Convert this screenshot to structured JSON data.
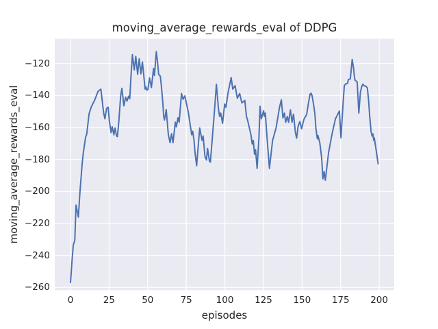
{
  "chart_data": {
    "type": "line",
    "title": "moving_average_rewards_eval of DDPG",
    "xlabel": "episodes",
    "ylabel": "moving_average_rewards_eval",
    "x_ticks": [
      0,
      25,
      50,
      75,
      100,
      125,
      150,
      175,
      200
    ],
    "x_tick_labels": [
      "0",
      "25",
      "50",
      "75",
      "100",
      "125",
      "150",
      "175",
      "200"
    ],
    "y_ticks": [
      -120,
      -140,
      -160,
      -180,
      -200,
      -220,
      -240,
      -260
    ],
    "y_tick_labels": [
      "−120",
      "−140",
      "−160",
      "−180",
      "−200",
      "−220",
      "−240",
      "−260"
    ],
    "xlim": [
      -10.2,
      209.7
    ],
    "ylim": [
      -261.7,
      -104.5
    ],
    "grid": true,
    "legend_position": "none",
    "style": {
      "figure_bg": "#ffffff",
      "axes_bg": "#eaeaf2",
      "grid_color": "#ffffff",
      "line_color": "#4c72b0",
      "text_color": "#262626"
    },
    "series": [
      {
        "name": "moving_average_rewards_eval",
        "points": [
          [
            0,
            -257
          ],
          [
            1,
            -243
          ],
          [
            1.8,
            -233.5
          ],
          [
            2.8,
            -230.5
          ],
          [
            3.6,
            -208.5
          ],
          [
            5.1,
            -216
          ],
          [
            6.1,
            -200.5
          ],
          [
            7.6,
            -182.5
          ],
          [
            8.3,
            -176
          ],
          [
            9.8,
            -166
          ],
          [
            10.5,
            -164.3
          ],
          [
            12,
            -151.5
          ],
          [
            13.5,
            -147
          ],
          [
            15.7,
            -142.8
          ],
          [
            17.8,
            -137.5
          ],
          [
            19.7,
            -136
          ],
          [
            20.8,
            -145.3
          ],
          [
            21.5,
            -151
          ],
          [
            22.3,
            -154.6
          ],
          [
            23.4,
            -148
          ],
          [
            24.4,
            -147.3
          ],
          [
            25.2,
            -156
          ],
          [
            26.3,
            -163.2
          ],
          [
            27,
            -159.5
          ],
          [
            28.1,
            -164.6
          ],
          [
            28.8,
            -160.3
          ],
          [
            29.9,
            -165.3
          ],
          [
            30.4,
            -165.7
          ],
          [
            31.4,
            -155.3
          ],
          [
            32.5,
            -140.3
          ],
          [
            33.3,
            -135.5
          ],
          [
            34.6,
            -146.5
          ],
          [
            35.7,
            -141
          ],
          [
            36.6,
            -143.5
          ],
          [
            37.6,
            -140.5
          ],
          [
            38.4,
            -142
          ],
          [
            39.2,
            -128
          ],
          [
            40.1,
            -114.5
          ],
          [
            41.3,
            -124
          ],
          [
            42.3,
            -115.5
          ],
          [
            43.5,
            -126.7
          ],
          [
            44.5,
            -117
          ],
          [
            45.6,
            -126.5
          ],
          [
            46.6,
            -119
          ],
          [
            47.5,
            -127.5
          ],
          [
            48.3,
            -136
          ],
          [
            48.8,
            -134.5
          ],
          [
            49.5,
            -136.7
          ],
          [
            50.2,
            -136.2
          ],
          [
            51.2,
            -129
          ],
          [
            52.4,
            -135
          ],
          [
            53.8,
            -123.1
          ],
          [
            54.4,
            -127.5
          ],
          [
            55.6,
            -112.5
          ],
          [
            56.4,
            -119
          ],
          [
            57.1,
            -126.7
          ],
          [
            58.2,
            -128
          ],
          [
            58.9,
            -134.6
          ],
          [
            59.8,
            -144.5
          ],
          [
            60.4,
            -153.1
          ],
          [
            60.9,
            -155.3
          ],
          [
            62,
            -148.8
          ],
          [
            63.4,
            -164.6
          ],
          [
            64.5,
            -169.5
          ],
          [
            65.5,
            -163.9
          ],
          [
            66.4,
            -169.5
          ],
          [
            67.9,
            -156.7
          ],
          [
            68.6,
            -159.6
          ],
          [
            69.6,
            -153.9
          ],
          [
            70.4,
            -156.7
          ],
          [
            71.9,
            -138.8
          ],
          [
            72.9,
            -142.4
          ],
          [
            74.1,
            -140.3
          ],
          [
            75.5,
            -146.7
          ],
          [
            76.3,
            -150.3
          ],
          [
            78.5,
            -164.6
          ],
          [
            79.2,
            -162.4
          ],
          [
            80,
            -168.1
          ],
          [
            80.7,
            -176
          ],
          [
            81.7,
            -183.9
          ],
          [
            83.7,
            -160.3
          ],
          [
            84.4,
            -163.9
          ],
          [
            85.2,
            -168.1
          ],
          [
            85.9,
            -165.3
          ],
          [
            87.1,
            -178.1
          ],
          [
            88.1,
            -180.3
          ],
          [
            88.8,
            -173.1
          ],
          [
            90,
            -181
          ],
          [
            90.6,
            -181.7
          ],
          [
            91.8,
            -167.4
          ],
          [
            93.3,
            -148.8
          ],
          [
            94.5,
            -133
          ],
          [
            95.9,
            -148.8
          ],
          [
            96.6,
            -153.1
          ],
          [
            97.3,
            -151
          ],
          [
            98.5,
            -157.4
          ],
          [
            99.9,
            -145.3
          ],
          [
            100.7,
            -147.4
          ],
          [
            102.1,
            -138.1
          ],
          [
            104.1,
            -128.8
          ],
          [
            105.1,
            -136
          ],
          [
            106.6,
            -133.8
          ],
          [
            108.1,
            -141.7
          ],
          [
            109.6,
            -138.8
          ],
          [
            111,
            -144.6
          ],
          [
            112.9,
            -143.1
          ],
          [
            114,
            -153.1
          ],
          [
            114.7,
            -155.3
          ],
          [
            116.9,
            -164.6
          ],
          [
            117.7,
            -170.3
          ],
          [
            118.4,
            -168.1
          ],
          [
            119.2,
            -176.7
          ],
          [
            119.9,
            -173.9
          ],
          [
            120.9,
            -185.6
          ],
          [
            122.1,
            -166
          ],
          [
            122.8,
            -146.7
          ],
          [
            123.6,
            -154.6
          ],
          [
            125.1,
            -149.6
          ],
          [
            125.6,
            -153.1
          ],
          [
            126.2,
            -151
          ],
          [
            127.2,
            -164.6
          ],
          [
            128,
            -174.6
          ],
          [
            128.9,
            -185.6
          ],
          [
            130.9,
            -168.1
          ],
          [
            133.2,
            -160.3
          ],
          [
            135.4,
            -147.4
          ],
          [
            136.6,
            -142.7
          ],
          [
            137.6,
            -154
          ],
          [
            138.6,
            -151
          ],
          [
            139.4,
            -156.7
          ],
          [
            140.5,
            -153.1
          ],
          [
            141.3,
            -156.7
          ],
          [
            142.5,
            -149
          ],
          [
            143.5,
            -156.7
          ],
          [
            144.5,
            -151.7
          ],
          [
            145.7,
            -163.1
          ],
          [
            146.5,
            -166.7
          ],
          [
            147.5,
            -159
          ],
          [
            148.6,
            -156.3
          ],
          [
            149.7,
            -160.8
          ],
          [
            151.2,
            -155
          ],
          [
            153,
            -151.8
          ],
          [
            154.3,
            -144
          ],
          [
            155.2,
            -139.1
          ],
          [
            155.9,
            -138.6
          ],
          [
            156.6,
            -140.5
          ],
          [
            157.5,
            -146
          ],
          [
            158.3,
            -151.4
          ],
          [
            159,
            -160.5
          ],
          [
            159.9,
            -167.1
          ],
          [
            160.3,
            -165
          ],
          [
            161.5,
            -169.6
          ],
          [
            162.7,
            -179
          ],
          [
            163.5,
            -192.1
          ],
          [
            164.3,
            -187.5
          ],
          [
            165.1,
            -193
          ],
          [
            167.2,
            -175.7
          ],
          [
            169.4,
            -164.3
          ],
          [
            171.6,
            -154.6
          ],
          [
            174.2,
            -149.7
          ],
          [
            175.2,
            -166.5
          ],
          [
            176.6,
            -145
          ],
          [
            177.4,
            -134
          ],
          [
            178.2,
            -132.8
          ],
          [
            179.5,
            -132.4
          ],
          [
            180,
            -130
          ],
          [
            181.3,
            -129.6
          ],
          [
            182.5,
            -117.5
          ],
          [
            183.4,
            -123.1
          ],
          [
            183.9,
            -128.1
          ],
          [
            184.3,
            -130.4
          ],
          [
            185.7,
            -131.5
          ],
          [
            186.8,
            -151
          ],
          [
            187.8,
            -138.1
          ],
          [
            188.6,
            -134.6
          ],
          [
            189.4,
            -132.9
          ],
          [
            190.2,
            -133.9
          ],
          [
            191.5,
            -134.3
          ],
          [
            192.3,
            -135.3
          ],
          [
            193.1,
            -143.1
          ],
          [
            193.8,
            -152.4
          ],
          [
            194.7,
            -162.5
          ],
          [
            195.4,
            -165.4
          ],
          [
            195.9,
            -164
          ],
          [
            196.4,
            -168
          ],
          [
            196.8,
            -166.5
          ],
          [
            197.5,
            -171
          ],
          [
            198.2,
            -175.5
          ],
          [
            199.3,
            -182.7
          ]
        ]
      }
    ]
  }
}
